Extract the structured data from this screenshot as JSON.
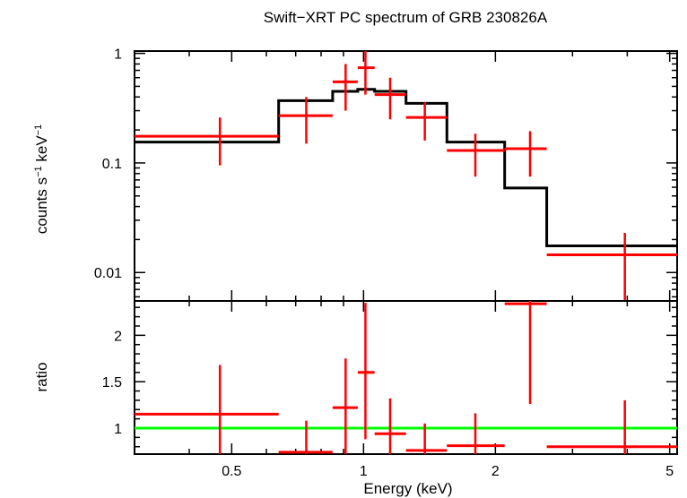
{
  "chart_data": [
    {
      "panel": "spectrum",
      "type": "line",
      "title": "Swift−XRT PC spectrum of GRB 230826A",
      "xlabel": "Energy (keV)",
      "ylabel": "counts s⁻¹ keV⁻¹",
      "xscale": "log",
      "yscale": "log",
      "xlim": [
        0.3,
        5.2
      ],
      "ylim": [
        0.0055,
        1.05
      ],
      "yticks": [
        {
          "value": 1,
          "label": "1"
        },
        {
          "value": 0.1,
          "label": "0.1"
        },
        {
          "value": 0.01,
          "label": "0.01"
        }
      ],
      "series": [
        {
          "kind": "data",
          "color": "#ff0000",
          "points": [
            {
              "x": 0.47,
              "xlo": 0.3,
              "xhi": 0.64,
              "y": 0.175,
              "ylo": 0.095,
              "yhi": 0.26
            },
            {
              "x": 0.74,
              "xlo": 0.64,
              "xhi": 0.85,
              "y": 0.27,
              "ylo": 0.15,
              "yhi": 0.4
            },
            {
              "x": 0.91,
              "xlo": 0.85,
              "xhi": 0.97,
              "y": 0.55,
              "ylo": 0.3,
              "yhi": 0.8
            },
            {
              "x": 1.01,
              "xlo": 0.97,
              "xhi": 1.06,
              "y": 0.74,
              "ylo": 0.42,
              "yhi": 1.05
            },
            {
              "x": 1.15,
              "xlo": 1.06,
              "xhi": 1.25,
              "y": 0.42,
              "ylo": 0.25,
              "yhi": 0.6
            },
            {
              "x": 1.38,
              "xlo": 1.25,
              "xhi": 1.55,
              "y": 0.26,
              "ylo": 0.16,
              "yhi": 0.36
            },
            {
              "x": 1.8,
              "xlo": 1.55,
              "xhi": 2.1,
              "y": 0.13,
              "ylo": 0.075,
              "yhi": 0.185
            },
            {
              "x": 2.4,
              "xlo": 2.1,
              "xhi": 2.62,
              "y": 0.135,
              "ylo": 0.075,
              "yhi": 0.195
            },
            {
              "x": 3.95,
              "xlo": 2.62,
              "xhi": 5.2,
              "y": 0.0145,
              "ylo": 0.0055,
              "yhi": 0.023
            }
          ]
        },
        {
          "kind": "model",
          "color": "#000000",
          "steps": [
            {
              "xlo": 0.3,
              "xhi": 0.64,
              "y": 0.155
            },
            {
              "xlo": 0.64,
              "xhi": 0.85,
              "y": 0.37
            },
            {
              "xlo": 0.85,
              "xhi": 0.97,
              "y": 0.45
            },
            {
              "xlo": 0.97,
              "xhi": 1.06,
              "y": 0.47
            },
            {
              "xlo": 1.06,
              "xhi": 1.25,
              "y": 0.45
            },
            {
              "xlo": 1.25,
              "xhi": 1.55,
              "y": 0.35
            },
            {
              "xlo": 1.55,
              "xhi": 2.1,
              "y": 0.155
            },
            {
              "xlo": 2.1,
              "xhi": 2.62,
              "y": 0.059
            },
            {
              "xlo": 2.62,
              "xhi": 5.2,
              "y": 0.0175
            }
          ]
        }
      ]
    },
    {
      "panel": "ratio",
      "type": "line",
      "xlabel": "Energy (keV)",
      "ylabel": "ratio",
      "xscale": "log",
      "xlim": [
        0.3,
        5.2
      ],
      "ylim": [
        0.72,
        2.37
      ],
      "xticks": [
        {
          "value": 0.5,
          "label": "0.5"
        },
        {
          "value": 1,
          "label": "1"
        },
        {
          "value": 2,
          "label": "2"
        },
        {
          "value": 5,
          "label": "5"
        }
      ],
      "yticks": [
        {
          "value": 1,
          "label": "1"
        },
        {
          "value": 1.5,
          "label": "1.5"
        },
        {
          "value": 2,
          "label": "2"
        }
      ],
      "reference_line": {
        "y": 1,
        "color": "#00ff00"
      },
      "series": [
        {
          "kind": "data",
          "color": "#ff0000",
          "points": [
            {
              "x": 0.47,
              "xlo": 0.3,
              "xhi": 0.64,
              "y": 1.15,
              "ylo": 0.72,
              "yhi": 1.68
            },
            {
              "x": 0.74,
              "xlo": 0.64,
              "xhi": 0.85,
              "y": 0.74,
              "ylo": 0.72,
              "yhi": 1.08
            },
            {
              "x": 0.91,
              "xlo": 0.85,
              "xhi": 0.97,
              "y": 1.22,
              "ylo": 0.72,
              "yhi": 1.75
            },
            {
              "x": 1.01,
              "xlo": 0.97,
              "xhi": 1.06,
              "y": 1.6,
              "ylo": 0.88,
              "yhi": 2.35
            },
            {
              "x": 1.15,
              "xlo": 1.06,
              "xhi": 1.25,
              "y": 0.94,
              "ylo": 0.72,
              "yhi": 1.32
            },
            {
              "x": 1.38,
              "xlo": 1.25,
              "xhi": 1.55,
              "y": 0.76,
              "ylo": 0.72,
              "yhi": 1.05
            },
            {
              "x": 1.8,
              "xlo": 1.55,
              "xhi": 2.1,
              "y": 0.81,
              "ylo": 0.72,
              "yhi": 1.16
            },
            {
              "x": 2.4,
              "xlo": 2.1,
              "xhi": 2.62,
              "y": 2.34,
              "ylo": 1.26,
              "yhi": 2.37
            },
            {
              "x": 3.95,
              "xlo": 2.62,
              "xhi": 5.2,
              "y": 0.8,
              "ylo": 0.72,
              "yhi": 1.3
            }
          ]
        }
      ]
    }
  ]
}
